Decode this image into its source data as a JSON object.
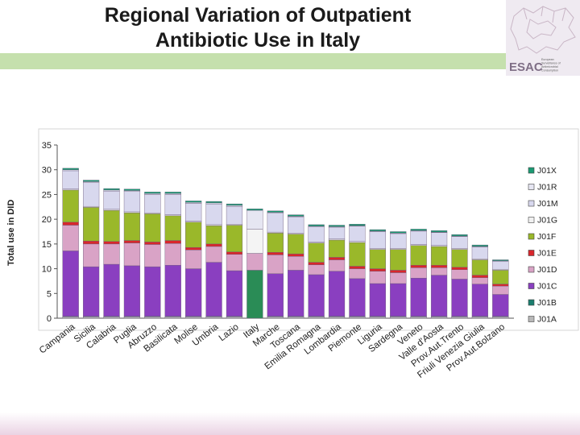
{
  "slide": {
    "title_line1": "Regional Variation of Outpatient",
    "title_line2": "Antibiotic Use in Italy",
    "logo_text": "ESAC",
    "logo_caption_lines": [
      "European",
      "Surveillance of",
      "Antimicrobial",
      "Consumption"
    ]
  },
  "colors": {
    "J01X": "#1a9a73",
    "J01R": "#e6e6f2",
    "J01M": "#d8d8ee",
    "J01G": "#f0f0f0",
    "J01F": "#9ab82a",
    "J01E": "#d9262c",
    "J01D": "#d9a3c6",
    "J01C": "#8a3fc0",
    "J01B": "#1a7d6e",
    "J01A": "#b8b8b8",
    "italy_J01A": "#2a8c56",
    "italy_J01G": "#f4f4f4",
    "italy_J01E": "#cc1111"
  },
  "chart_data": {
    "type": "bar",
    "stacked": true,
    "title": "Regional Variation of Outpatient Antibiotic Use in Italy",
    "ylabel": "Total use in DID",
    "xlabel": "",
    "ylim": [
      0,
      35
    ],
    "yticks": [
      0,
      5,
      10,
      15,
      20,
      25,
      30,
      35
    ],
    "legend_position": "right",
    "categories": [
      "Campania",
      "Sicilia",
      "Calabria",
      "Puglia",
      "Abruzzo",
      "Basilicata",
      "Molise",
      "Umbria",
      "Lazio",
      "Italy",
      "Marche",
      "Toscana",
      "Emilia Romagna",
      "Lombardia",
      "Piemonte",
      "Liguria",
      "Sardegna",
      "Veneto",
      "Valle d'Aosta",
      "Prov.Aut.Trento",
      "Friuli Venezia Giulia",
      "Prov.Aut.Bolzano"
    ],
    "series": [
      {
        "name": "J01A",
        "values": [
          0.3,
          0.3,
          0.3,
          0.3,
          0.3,
          0.3,
          0.3,
          0.3,
          0.3,
          9.7,
          0.3,
          0.3,
          0.3,
          0.3,
          0.3,
          0.3,
          0.3,
          0.3,
          0.3,
          0.3,
          0.3,
          0.3
        ]
      },
      {
        "name": "J01B",
        "values": [
          0.1,
          0.1,
          0.1,
          0.1,
          0.1,
          0.1,
          0.1,
          0.1,
          0.1,
          0,
          0.1,
          0.1,
          0.1,
          0.1,
          0.1,
          0.1,
          0.1,
          0.1,
          0.1,
          0.1,
          0.1,
          0.1
        ]
      },
      {
        "name": "J01C",
        "values": [
          13.2,
          10.0,
          10.5,
          10.2,
          10.0,
          10.3,
          9.6,
          10.9,
          9.2,
          0,
          8.6,
          9.3,
          8.4,
          9.1,
          7.6,
          6.6,
          6.6,
          7.7,
          8.3,
          7.5,
          6.5,
          4.4
        ]
      },
      {
        "name": "J01D",
        "values": [
          5.2,
          4.6,
          4.1,
          4.6,
          4.5,
          4.4,
          3.8,
          3.2,
          3.3,
          3.4,
          3.8,
          2.8,
          2.0,
          2.3,
          2.0,
          2.5,
          2.2,
          2.1,
          1.5,
          1.9,
          1.3,
          1.7
        ]
      },
      {
        "name": "J01E",
        "values": [
          0.6,
          0.6,
          0.5,
          0.5,
          0.5,
          0.6,
          0.5,
          0.5,
          0.5,
          0,
          0.5,
          0.5,
          0.5,
          0.5,
          0.5,
          0.5,
          0.5,
          0.5,
          0.5,
          0.5,
          0.5,
          0.4
        ]
      },
      {
        "name": "J01F",
        "values": [
          6.5,
          6.8,
          6.3,
          5.6,
          5.7,
          5.0,
          5.1,
          3.7,
          5.4,
          0,
          3.9,
          4.0,
          3.9,
          3.5,
          4.8,
          3.9,
          4.2,
          4.0,
          3.8,
          3.6,
          3.1,
          2.8
        ]
      },
      {
        "name": "J01G",
        "values": [
          0.2,
          0.2,
          0.2,
          0.2,
          0.2,
          0.2,
          0.2,
          0.2,
          0.2,
          4.9,
          0.2,
          0.2,
          0.2,
          0.2,
          0.2,
          0.2,
          0.2,
          0.2,
          0.2,
          0.2,
          0.2,
          0.2
        ]
      },
      {
        "name": "J01M",
        "values": [
          3.7,
          4.8,
          3.7,
          4.1,
          3.7,
          4.1,
          3.6,
          4.2,
          3.6,
          0,
          3.8,
          3.3,
          3.1,
          2.4,
          3.1,
          3.4,
          3.0,
          2.7,
          2.6,
          2.4,
          2.4,
          1.6
        ]
      },
      {
        "name": "J01R",
        "values": [
          0.2,
          0.2,
          0.2,
          0.2,
          0.2,
          0.2,
          0.2,
          0.2,
          0.2,
          3.8,
          0.2,
          0.1,
          0.1,
          0.1,
          0.1,
          0.1,
          0.1,
          0.1,
          0.1,
          0.1,
          0.1,
          0.1
        ]
      },
      {
        "name": "J01X",
        "values": [
          0.3,
          0.3,
          0.3,
          0.3,
          0.3,
          0.3,
          0.3,
          0.3,
          0.3,
          0.3,
          0.3,
          0.3,
          0.3,
          0.3,
          0.3,
          0.3,
          0.3,
          0.3,
          0.3,
          0.3,
          0.3,
          0.2
        ]
      }
    ],
    "legend": [
      "J01X",
      "J01R",
      "J01M",
      "J01G",
      "J01F",
      "J01E",
      "J01D",
      "J01C",
      "J01B",
      "J01A"
    ]
  }
}
